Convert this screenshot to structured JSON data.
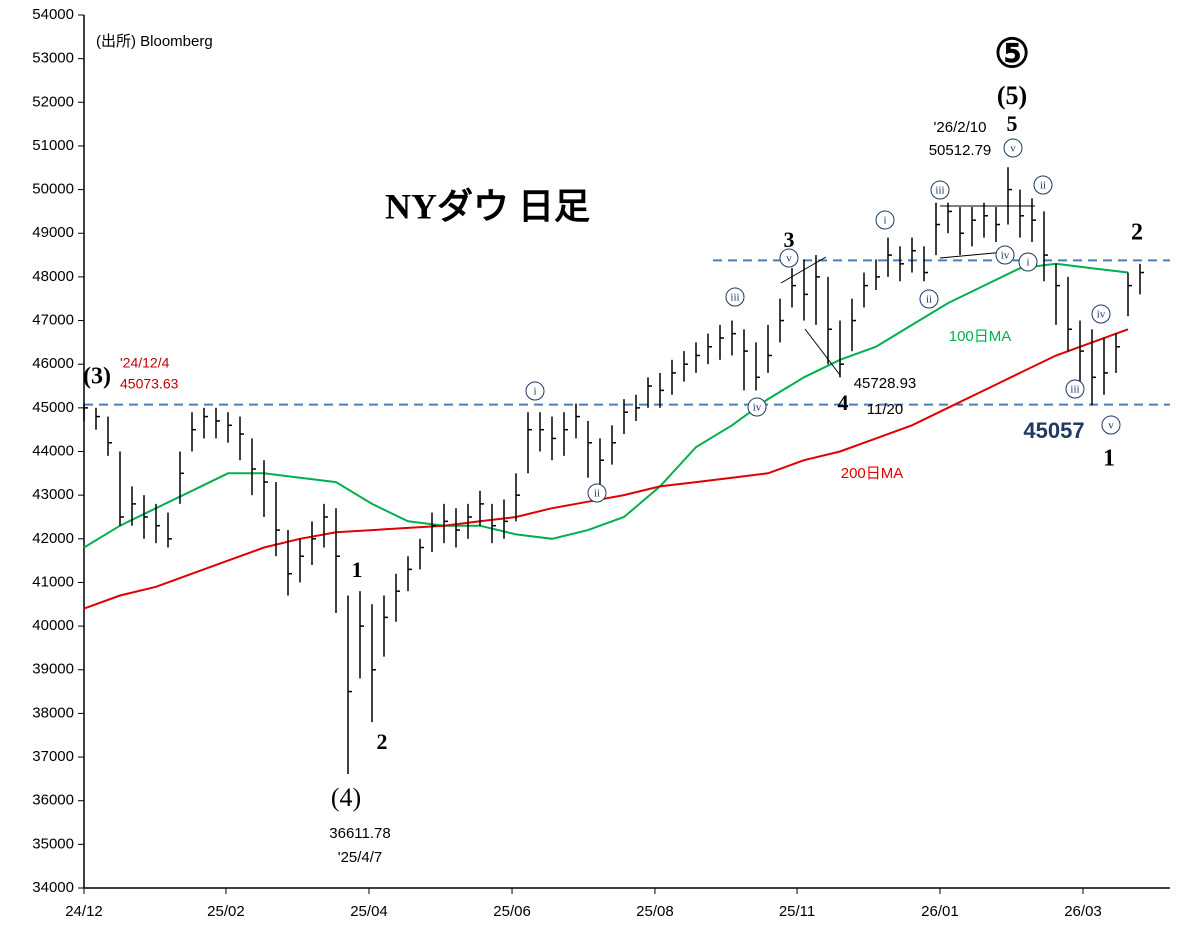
{
  "chart_data": {
    "type": "ohlc",
    "xlim": [
      0,
      90
    ],
    "xticks": [
      {
        "value": 0,
        "label": "24/12"
      },
      {
        "value": 11.83,
        "label": "25/02"
      },
      {
        "value": 23.75,
        "label": "25/04"
      },
      {
        "value": 35.67,
        "label": "25/06"
      },
      {
        "value": 47.58,
        "label": "25/08"
      },
      {
        "value": 59.42,
        "label": "25/11"
      },
      {
        "value": 71.33,
        "label": "26/01"
      },
      {
        "value": 83.25,
        "label": "26/03"
      }
    ],
    "ylim": [
      34000,
      54000
    ],
    "yticks": [
      34000,
      35000,
      36000,
      37000,
      38000,
      39000,
      40000,
      41000,
      42000,
      43000,
      44000,
      45000,
      46000,
      47000,
      48000,
      49000,
      50000,
      51000,
      52000,
      53000,
      54000
    ],
    "bar_color": "#000000",
    "high": [
      45100,
      45000,
      44800,
      44000,
      43200,
      43000,
      42800,
      42600,
      44000,
      44900,
      45000,
      45000,
      44900,
      44800,
      44300,
      43800,
      43300,
      42200,
      42000,
      42400,
      42800,
      42700,
      40700,
      40800,
      40500,
      40700,
      41200,
      41600,
      42000,
      42600,
      42800,
      42700,
      42800,
      43100,
      42800,
      42900,
      43500,
      44900,
      44900,
      44800,
      44900,
      45100,
      44700,
      44300,
      44600,
      45200,
      45300,
      45700,
      45800,
      46100,
      46300,
      46500,
      46700,
      46900,
      47000,
      46800,
      46500,
      46900,
      47500,
      48200,
      48400,
      48500,
      48000,
      47000,
      47500,
      48100,
      48400,
      48900,
      48700,
      48900,
      48700,
      49700,
      49700,
      49600,
      49600,
      49700,
      49600,
      50512.79,
      50000,
      49800,
      49500,
      48300,
      48000,
      47000,
      46800,
      46600,
      46700,
      48100,
      48300
    ],
    "low": [
      44700,
      44500,
      43900,
      42300,
      42300,
      42000,
      41900,
      41800,
      42800,
      44000,
      44300,
      44300,
      44200,
      43800,
      43000,
      42500,
      41600,
      40700,
      41000,
      41400,
      41800,
      40300,
      36611.78,
      38800,
      37800,
      39300,
      40100,
      40800,
      41300,
      41700,
      41900,
      41800,
      42000,
      42300,
      41900,
      42000,
      42400,
      43500,
      44000,
      43800,
      43900,
      44300,
      43400,
      43100,
      43700,
      44400,
      44700,
      45000,
      45000,
      45300,
      45600,
      45800,
      46000,
      46100,
      46200,
      45400,
      45400,
      45800,
      46500,
      47300,
      47000,
      46900,
      46000,
      45700,
      46300,
      47300,
      47700,
      48000,
      47900,
      48100,
      47900,
      48500,
      49000,
      48500,
      48700,
      48900,
      48800,
      49200,
      48900,
      48800,
      47900,
      46900,
      46300,
      45500,
      45057,
      45300,
      45800,
      47100,
      47600
    ],
    "close": [
      45000,
      44800,
      44200,
      42500,
      42800,
      42500,
      42300,
      42000,
      43500,
      44500,
      44800,
      44700,
      44600,
      44400,
      43600,
      43300,
      42200,
      41200,
      41600,
      42000,
      42500,
      41600,
      38500,
      40000,
      39000,
      40200,
      40800,
      41300,
      41800,
      42300,
      42400,
      42200,
      42500,
      42800,
      42300,
      42400,
      43000,
      44500,
      44500,
      44300,
      44500,
      44800,
      44200,
      43800,
      44200,
      44900,
      45000,
      45500,
      45400,
      45800,
      46000,
      46200,
      46400,
      46600,
      46700,
      46300,
      45700,
      46200,
      47000,
      47800,
      47600,
      48000,
      46800,
      46000,
      47000,
      47800,
      48000,
      48500,
      48300,
      48600,
      48100,
      49200,
      49500,
      49000,
      49300,
      49400,
      49200,
      50000,
      49400,
      49300,
      48500,
      47800,
      46800,
      46300,
      45700,
      45800,
      46400,
      47800,
      48100
    ],
    "series": [
      {
        "name": "100日MA",
        "color": "#00b050",
        "x": [
          0,
          3,
          6,
          9,
          12,
          15,
          18,
          21,
          24,
          27,
          30,
          33,
          36,
          39,
          42,
          45,
          48,
          51,
          54,
          57,
          60,
          63,
          66,
          69,
          72,
          75,
          78,
          81,
          84,
          87
        ],
        "values": [
          41800,
          42300,
          42700,
          43100,
          43500,
          43500,
          43400,
          43300,
          42800,
          42400,
          42300,
          42300,
          42100,
          42000,
          42200,
          42500,
          43200,
          44100,
          44600,
          45200,
          45700,
          46100,
          46400,
          46900,
          47400,
          47800,
          48200,
          48300,
          48200,
          48100
        ]
      },
      {
        "name": "200日MA",
        "color": "#e00000",
        "x": [
          0,
          3,
          6,
          9,
          12,
          15,
          18,
          21,
          24,
          27,
          30,
          33,
          36,
          39,
          42,
          45,
          48,
          51,
          54,
          57,
          60,
          63,
          66,
          69,
          72,
          75,
          78,
          81,
          84,
          87
        ],
        "values": [
          40400,
          40700,
          40900,
          41200,
          41500,
          41800,
          42000,
          42150,
          42200,
          42250,
          42300,
          42400,
          42500,
          42700,
          42850,
          43000,
          43200,
          43300,
          43400,
          43500,
          43800,
          44000,
          44300,
          44600,
          45000,
          45400,
          45800,
          46200,
          46500,
          46800
        ]
      }
    ],
    "hlines": [
      {
        "value": 45073.63,
        "color": "#4a7ebb"
      },
      {
        "value": 48380,
        "color": "#4a7ebb"
      }
    ],
    "annotations": [
      "(出所) Bloomberg",
      "NYダウ 日足",
      "⑤",
      "(5)",
      "5",
      "'26/2/10",
      "50512.79",
      "3",
      "4",
      "45728.93",
      "11/20",
      "'24/12/4",
      "45073.63",
      "(3)",
      "45057",
      "1",
      "2",
      "1",
      "2",
      "(4)",
      "36611.78",
      "'25/4/7"
    ],
    "wave_labels": [
      "i",
      "ii",
      "iii",
      "iv",
      "v",
      "i",
      "ii",
      "iii",
      "iv",
      "i",
      "v",
      "ii",
      "iv",
      "iii",
      "v"
    ]
  }
}
